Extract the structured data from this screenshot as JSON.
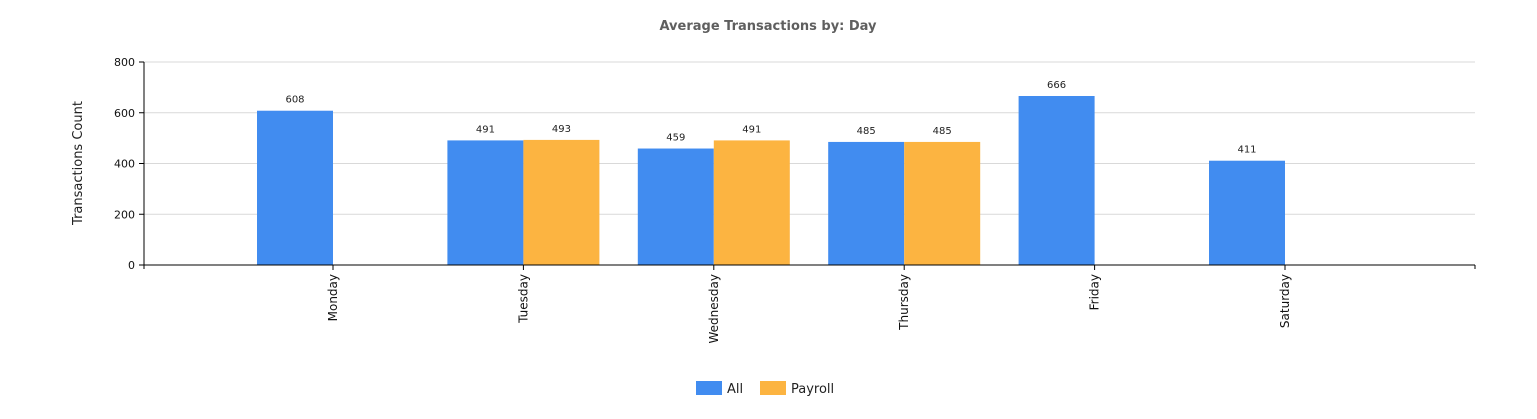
{
  "chart_data": {
    "type": "bar",
    "title": "Average Transactions by: Day",
    "xlabel": "",
    "ylabel": "Transactions Count",
    "categories": [
      "Monday",
      "Tuesday",
      "Wednesday",
      "Thursday",
      "Friday",
      "Saturday"
    ],
    "series": [
      {
        "name": "All",
        "color": "#418cf0",
        "values": [
          608,
          491,
          459,
          485,
          666,
          411
        ]
      },
      {
        "name": "Payroll",
        "color": "#fcb441",
        "values": [
          null,
          493,
          491,
          485,
          null,
          null
        ]
      }
    ],
    "ylim": [
      0,
      800
    ],
    "yticks": [
      0,
      200,
      400,
      600,
      800
    ],
    "grid": true,
    "legend_position": "bottom-center"
  }
}
